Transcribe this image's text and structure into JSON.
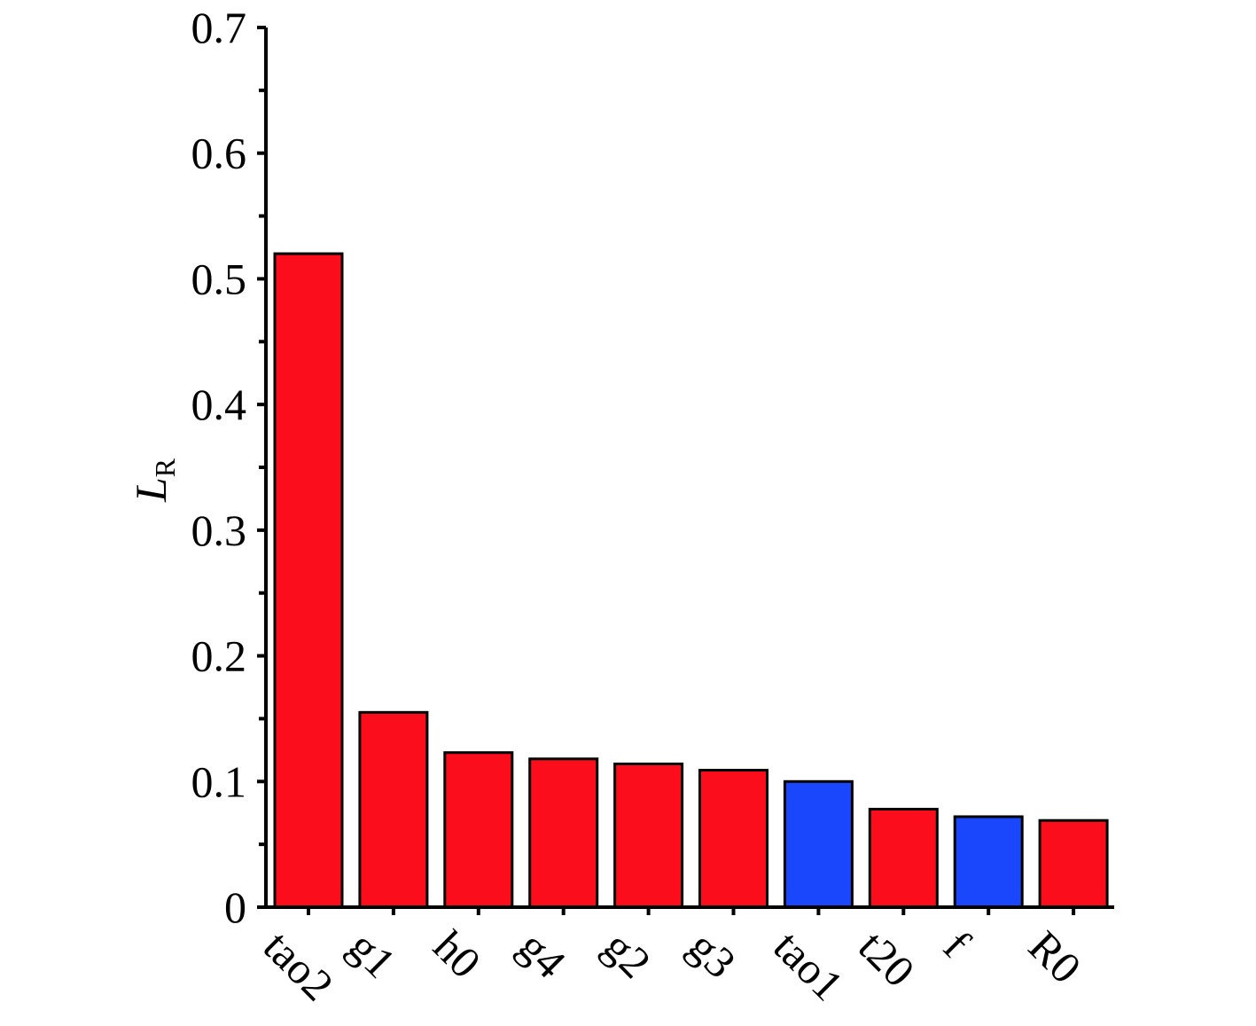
{
  "chart_data": {
    "type": "bar",
    "ylabel": {
      "main": "L",
      "subscript": "R"
    },
    "ylim": [
      0,
      0.7
    ],
    "yticks": [
      "0",
      "0.1",
      "0.2",
      "0.3",
      "0.4",
      "0.5",
      "0.6",
      "0.7"
    ],
    "categories": [
      "tao2",
      "g1",
      "h0",
      "g4",
      "g2",
      "g3",
      "tao1",
      "t20",
      "f",
      "R0"
    ],
    "values": [
      0.52,
      0.155,
      0.123,
      0.118,
      0.114,
      0.109,
      0.1,
      0.078,
      0.072,
      0.069
    ],
    "bar_colors": [
      "#fc0d1b",
      "#fc0d1b",
      "#fc0d1b",
      "#fc0d1b",
      "#fc0d1b",
      "#fc0d1b",
      "#1a47fc",
      "#fc0d1b",
      "#1a47fc",
      "#fc0d1b"
    ],
    "grid": false,
    "legend": "none"
  }
}
